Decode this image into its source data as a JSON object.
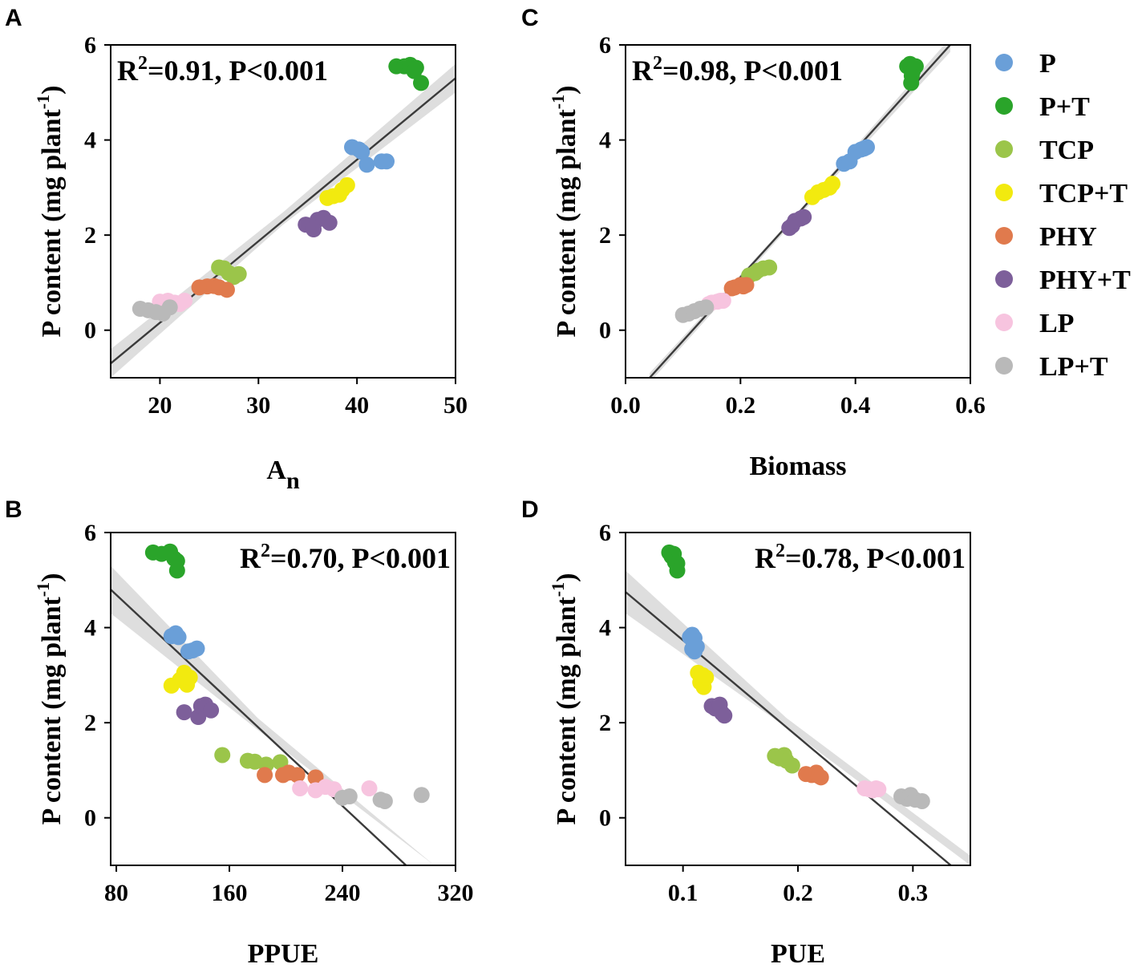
{
  "colors": {
    "P": "#6a9fd8",
    "P+T": "#2aa42a",
    "TCP": "#9bc54a",
    "TCP+T": "#f2ea0f",
    "PHY": "#e07a4d",
    "PHY+T": "#7d5f9a",
    "LP": "#f7c4df",
    "LP+T": "#b9b9b9"
  },
  "legend": {
    "items": [
      {
        "key": "P",
        "label": "P"
      },
      {
        "key": "P+T",
        "label": "P+T"
      },
      {
        "key": "TCP",
        "label": "TCP"
      },
      {
        "key": "TCP+T",
        "label": "TCP+T"
      },
      {
        "key": "PHY",
        "label": "PHY"
      },
      {
        "key": "PHY+T",
        "label": "PHY+T"
      },
      {
        "key": "LP",
        "label": "LP"
      },
      {
        "key": "LP+T",
        "label": "LP+T"
      }
    ]
  },
  "chart_data": [
    {
      "panel": "A",
      "type": "scatter",
      "title": "",
      "xlabel": "A",
      "xlabel_sub": "n",
      "ylabel": "P content (mg plant",
      "ylabel_sup": "-1",
      "ylabel_end": ")",
      "xlim": [
        15,
        50
      ],
      "ylim": [
        -1,
        6
      ],
      "xticks": [
        20,
        30,
        40,
        50
      ],
      "xtick_labels": [
        "20",
        "30",
        "40",
        "50"
      ],
      "yticks": [
        0,
        2,
        4,
        6
      ],
      "ytick_labels": [
        "0",
        "2",
        "4",
        "6"
      ],
      "stat_r2": "0.91",
      "stat_p": "P<0.001",
      "stat_pos": "top-left",
      "fit": {
        "x": [
          15,
          50
        ],
        "y": [
          -0.7,
          5.3
        ]
      },
      "ci": {
        "x": [
          15,
          32.5,
          50
        ],
        "lower": [
          -1.0,
          2.22,
          5.0
        ],
        "upper": [
          -0.4,
          2.48,
          5.6
        ]
      },
      "series": [
        {
          "name": "P",
          "points": [
            [
              39.5,
              3.85
            ],
            [
              40.2,
              3.8
            ],
            [
              40.5,
              3.75
            ],
            [
              41.0,
              3.48
            ],
            [
              42.5,
              3.55
            ],
            [
              43.0,
              3.55
            ]
          ]
        },
        {
          "name": "P+T",
          "points": [
            [
              44.0,
              5.55
            ],
            [
              44.8,
              5.55
            ],
            [
              45.4,
              5.58
            ],
            [
              45.8,
              5.45
            ],
            [
              46.0,
              5.52
            ],
            [
              46.5,
              5.2
            ]
          ]
        },
        {
          "name": "TCP",
          "points": [
            [
              26.0,
              1.32
            ],
            [
              26.5,
              1.3
            ],
            [
              27.0,
              1.2
            ],
            [
              27.5,
              1.12
            ],
            [
              28.0,
              1.18
            ]
          ]
        },
        {
          "name": "TCP+T",
          "points": [
            [
              37.0,
              2.78
            ],
            [
              37.6,
              2.82
            ],
            [
              38.2,
              2.85
            ],
            [
              38.5,
              2.95
            ],
            [
              39.0,
              3.05
            ]
          ]
        },
        {
          "name": "PHY",
          "points": [
            [
              24.0,
              0.9
            ],
            [
              24.8,
              0.92
            ],
            [
              25.5,
              0.93
            ],
            [
              26.0,
              0.9
            ],
            [
              26.8,
              0.85
            ]
          ]
        },
        {
          "name": "PHY+T",
          "points": [
            [
              34.8,
              2.22
            ],
            [
              35.6,
              2.12
            ],
            [
              36.0,
              2.32
            ],
            [
              36.6,
              2.36
            ],
            [
              37.2,
              2.26
            ]
          ]
        },
        {
          "name": "LP",
          "points": [
            [
              20.0,
              0.6
            ],
            [
              20.8,
              0.62
            ],
            [
              21.5,
              0.58
            ],
            [
              22.0,
              0.55
            ],
            [
              22.5,
              0.62
            ]
          ]
        },
        {
          "name": "LP+T",
          "points": [
            [
              18.0,
              0.45
            ],
            [
              18.8,
              0.42
            ],
            [
              19.6,
              0.38
            ],
            [
              20.3,
              0.35
            ],
            [
              21.0,
              0.48
            ]
          ]
        }
      ]
    },
    {
      "panel": "B",
      "type": "scatter",
      "title": "",
      "xlabel": "PPUE",
      "xlabel_sub": "",
      "ylabel": "P content (mg plant",
      "ylabel_sup": "-1",
      "ylabel_end": ")",
      "xlim": [
        76,
        320
      ],
      "ylim": [
        -1,
        6
      ],
      "xticks": [
        80,
        160,
        240,
        320
      ],
      "xtick_labels": [
        "80",
        "160",
        "240",
        "320"
      ],
      "yticks": [
        0,
        2,
        4,
        6
      ],
      "ytick_labels": [
        "0",
        "2",
        "4",
        "6"
      ],
      "stat_r2": "0.70",
      "stat_p": "P<0.001",
      "stat_pos": "top-right",
      "fit": {
        "x": [
          76,
          285
        ],
        "y": [
          4.8,
          -1.0
        ]
      },
      "ci": {
        "x": [
          76,
          180,
          305
        ],
        "lower": [
          4.3,
          1.85,
          -1.0
        ],
        "upper": [
          5.3,
          2.1,
          -1.0
        ]
      },
      "series": [
        {
          "name": "P",
          "points": [
            [
              119,
              3.82
            ],
            [
              122,
              3.88
            ],
            [
              124,
              3.8
            ],
            [
              131,
              3.5
            ],
            [
              134,
              3.52
            ],
            [
              137,
              3.56
            ]
          ]
        },
        {
          "name": "P+T",
          "points": [
            [
              106,
              5.58
            ],
            [
              112,
              5.55
            ],
            [
              118,
              5.6
            ],
            [
              121,
              5.45
            ],
            [
              123,
              5.4
            ],
            [
              123,
              5.2
            ]
          ]
        },
        {
          "name": "TCP",
          "points": [
            [
              155,
              1.32
            ],
            [
              173,
              1.2
            ],
            [
              178,
              1.18
            ],
            [
              186,
              1.12
            ],
            [
              196,
              1.17
            ]
          ]
        },
        {
          "name": "TCP+T",
          "points": [
            [
              119,
              2.78
            ],
            [
              125,
              2.9
            ],
            [
              128,
              3.05
            ],
            [
              130,
              2.8
            ],
            [
              132,
              2.95
            ]
          ]
        },
        {
          "name": "PHY",
          "points": [
            [
              185,
              0.9
            ],
            [
              198,
              0.9
            ],
            [
              202,
              0.95
            ],
            [
              208,
              0.9
            ],
            [
              221,
              0.85
            ]
          ]
        },
        {
          "name": "PHY+T",
          "points": [
            [
              128,
              2.22
            ],
            [
              138,
              2.12
            ],
            [
              140,
              2.35
            ],
            [
              143,
              2.38
            ],
            [
              147,
              2.26
            ]
          ]
        },
        {
          "name": "LP",
          "points": [
            [
              210,
              0.62
            ],
            [
              221,
              0.58
            ],
            [
              228,
              0.65
            ],
            [
              234,
              0.6
            ],
            [
              259,
              0.62
            ]
          ]
        },
        {
          "name": "LP+T",
          "points": [
            [
              240,
              0.42
            ],
            [
              245,
              0.45
            ],
            [
              267,
              0.38
            ],
            [
              270,
              0.35
            ],
            [
              296,
              0.48
            ]
          ]
        }
      ]
    },
    {
      "panel": "C",
      "type": "scatter",
      "title": "",
      "xlabel": "Biomass",
      "xlabel_sub": "",
      "ylabel": "P content (mg plant",
      "ylabel_sup": "-1",
      "ylabel_end": ")",
      "xlim": [
        0.0,
        0.6
      ],
      "ylim": [
        -1,
        6
      ],
      "xticks": [
        0.0,
        0.2,
        0.4,
        0.6
      ],
      "xtick_labels": [
        "0.0",
        "0.2",
        "0.4",
        "0.6"
      ],
      "yticks": [
        0,
        2,
        4,
        6
      ],
      "ytick_labels": [
        "0",
        "2",
        "4",
        "6"
      ],
      "stat_r2": "0.98",
      "stat_p": "P<0.001",
      "stat_pos": "top-left",
      "fit": {
        "x": [
          0.042,
          0.565
        ],
        "y": [
          -1.0,
          6.0
        ]
      },
      "ci": {
        "x": [
          0.042,
          0.3,
          0.565
        ],
        "lower": [
          -1.1,
          2.38,
          5.85
        ],
        "upper": [
          -0.9,
          2.48,
          6.15
        ]
      },
      "series": [
        {
          "name": "P",
          "points": [
            [
              0.38,
              3.5
            ],
            [
              0.39,
              3.55
            ],
            [
              0.4,
              3.75
            ],
            [
              0.41,
              3.8
            ],
            [
              0.415,
              3.82
            ],
            [
              0.42,
              3.85
            ]
          ]
        },
        {
          "name": "P+T",
          "points": [
            [
              0.49,
              5.55
            ],
            [
              0.495,
              5.6
            ],
            [
              0.5,
              5.45
            ],
            [
              0.505,
              5.55
            ],
            [
              0.498,
              5.35
            ],
            [
              0.497,
              5.2
            ]
          ]
        },
        {
          "name": "TCP",
          "points": [
            [
              0.215,
              1.15
            ],
            [
              0.225,
              1.2
            ],
            [
              0.23,
              1.25
            ],
            [
              0.24,
              1.3
            ],
            [
              0.25,
              1.32
            ]
          ]
        },
        {
          "name": "TCP+T",
          "points": [
            [
              0.325,
              2.8
            ],
            [
              0.335,
              2.9
            ],
            [
              0.345,
              2.95
            ],
            [
              0.355,
              3.0
            ],
            [
              0.36,
              3.08
            ]
          ]
        },
        {
          "name": "PHY",
          "points": [
            [
              0.185,
              0.88
            ],
            [
              0.19,
              0.9
            ],
            [
              0.2,
              0.95
            ],
            [
              0.205,
              0.92
            ],
            [
              0.21,
              0.95
            ]
          ]
        },
        {
          "name": "PHY+T",
          "points": [
            [
              0.285,
              2.15
            ],
            [
              0.29,
              2.2
            ],
            [
              0.295,
              2.3
            ],
            [
              0.305,
              2.35
            ],
            [
              0.31,
              2.38
            ]
          ]
        },
        {
          "name": "LP",
          "points": [
            [
              0.145,
              0.55
            ],
            [
              0.15,
              0.58
            ],
            [
              0.16,
              0.6
            ],
            [
              0.165,
              0.62
            ],
            [
              0.17,
              0.62
            ]
          ]
        },
        {
          "name": "LP+T",
          "points": [
            [
              0.1,
              0.32
            ],
            [
              0.11,
              0.35
            ],
            [
              0.12,
              0.4
            ],
            [
              0.13,
              0.45
            ],
            [
              0.14,
              0.48
            ]
          ]
        }
      ]
    },
    {
      "panel": "D",
      "type": "scatter",
      "title": "",
      "xlabel": "PUE",
      "xlabel_sub": "",
      "ylabel": "P content (mg plant",
      "ylabel_sup": "-1",
      "ylabel_end": ")",
      "xlim": [
        0.05,
        0.35
      ],
      "ylim": [
        -1,
        6
      ],
      "xticks": [
        0.1,
        0.2,
        0.3
      ],
      "xtick_labels": [
        "0.1",
        "0.2",
        "0.3"
      ],
      "yticks": [
        0,
        2,
        4,
        6
      ],
      "ytick_labels": [
        "0",
        "2",
        "4",
        "6"
      ],
      "stat_r2": "0.78",
      "stat_p": "P<0.001",
      "stat_pos": "top-right",
      "fit": {
        "x": [
          0.05,
          0.333
        ],
        "y": [
          4.75,
          -1.0
        ]
      },
      "ci": {
        "x": [
          0.05,
          0.19,
          0.35
        ],
        "lower": [
          4.3,
          1.9,
          -1.0
        ],
        "upper": [
          5.2,
          2.1,
          -0.8
        ]
      },
      "series": [
        {
          "name": "P",
          "points": [
            [
              0.106,
              3.8
            ],
            [
              0.108,
              3.85
            ],
            [
              0.11,
              3.78
            ],
            [
              0.108,
              3.55
            ],
            [
              0.11,
              3.5
            ],
            [
              0.112,
              3.6
            ]
          ]
        },
        {
          "name": "P+T",
          "points": [
            [
              0.088,
              5.58
            ],
            [
              0.092,
              5.55
            ],
            [
              0.09,
              5.5
            ],
            [
              0.093,
              5.38
            ],
            [
              0.095,
              5.35
            ],
            [
              0.095,
              5.2
            ]
          ]
        },
        {
          "name": "TCP",
          "points": [
            [
              0.18,
              1.3
            ],
            [
              0.184,
              1.25
            ],
            [
              0.188,
              1.32
            ],
            [
              0.19,
              1.2
            ],
            [
              0.195,
              1.1
            ]
          ]
        },
        {
          "name": "TCP+T",
          "points": [
            [
              0.113,
              3.05
            ],
            [
              0.115,
              2.85
            ],
            [
              0.118,
              2.75
            ],
            [
              0.12,
              2.95
            ],
            [
              0.117,
              3.0
            ]
          ]
        },
        {
          "name": "PHY",
          "points": [
            [
              0.207,
              0.92
            ],
            [
              0.212,
              0.9
            ],
            [
              0.216,
              0.95
            ],
            [
              0.218,
              0.88
            ],
            [
              0.22,
              0.85
            ]
          ]
        },
        {
          "name": "PHY+T",
          "points": [
            [
              0.125,
              2.35
            ],
            [
              0.128,
              2.3
            ],
            [
              0.132,
              2.38
            ],
            [
              0.134,
              2.2
            ],
            [
              0.136,
              2.15
            ]
          ]
        },
        {
          "name": "LP",
          "points": [
            [
              0.258,
              0.62
            ],
            [
              0.262,
              0.6
            ],
            [
              0.265,
              0.58
            ],
            [
              0.268,
              0.62
            ],
            [
              0.27,
              0.6
            ]
          ]
        },
        {
          "name": "LP+T",
          "points": [
            [
              0.29,
              0.45
            ],
            [
              0.295,
              0.4
            ],
            [
              0.298,
              0.48
            ],
            [
              0.302,
              0.38
            ],
            [
              0.308,
              0.35
            ]
          ]
        }
      ]
    }
  ]
}
